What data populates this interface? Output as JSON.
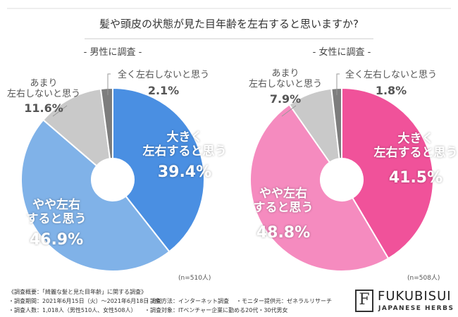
{
  "title": "髪や頭皮の状態が見た目年齢を左右すると思いますか?",
  "chart_data": [
    {
      "type": "pie",
      "title": "- 男性に調査 -",
      "note": "(n=510人)",
      "categories": [
        "大きく\n左右すると思う",
        "やや左右\nすると思う",
        "あまり\n左右しないと思う",
        "全く左右しないと思う"
      ],
      "values": [
        39.4,
        46.9,
        11.6,
        2.1
      ],
      "value_labels": [
        "39.4%",
        "46.9%",
        "11.6%",
        "2.1%"
      ],
      "colors": [
        "#4a8fe2",
        "#80b2e8",
        "#c9c9c9",
        "#7d7d7d"
      ]
    },
    {
      "type": "pie",
      "title": "- 女性に調査 -",
      "note": "(n=508人)",
      "categories": [
        "大きく\n左右すると思う",
        "やや左右\nすると思う",
        "あまり\n左右しないと思う",
        "全く左右しないと思う"
      ],
      "values": [
        41.5,
        48.8,
        7.9,
        1.8
      ],
      "value_labels": [
        "41.5%",
        "48.8%",
        "7.9%",
        "1.8%"
      ],
      "colors": [
        "#f0529a",
        "#f58bbf",
        "#c9c9c9",
        "#7d7d7d"
      ]
    }
  ],
  "footer": {
    "heading": "《調査概要：「綺麗な髪と見た目年齢」に関する調査》",
    "items": [
      "・調査期間：2021年6月15日（火）〜2021年6月18日（金）",
      "・調査方法：インターネット調査",
      "・モニター提供元：ゼネラルリサーチ",
      "・調査人数：1,018人（男性510人、女性508人）",
      "・調査対象：ITベンチャー企業に勤める20代・30代男女"
    ]
  },
  "logo": {
    "icon": "F",
    "name": "FUKUBISUI",
    "tagline": "JAPANESE HERBS"
  }
}
